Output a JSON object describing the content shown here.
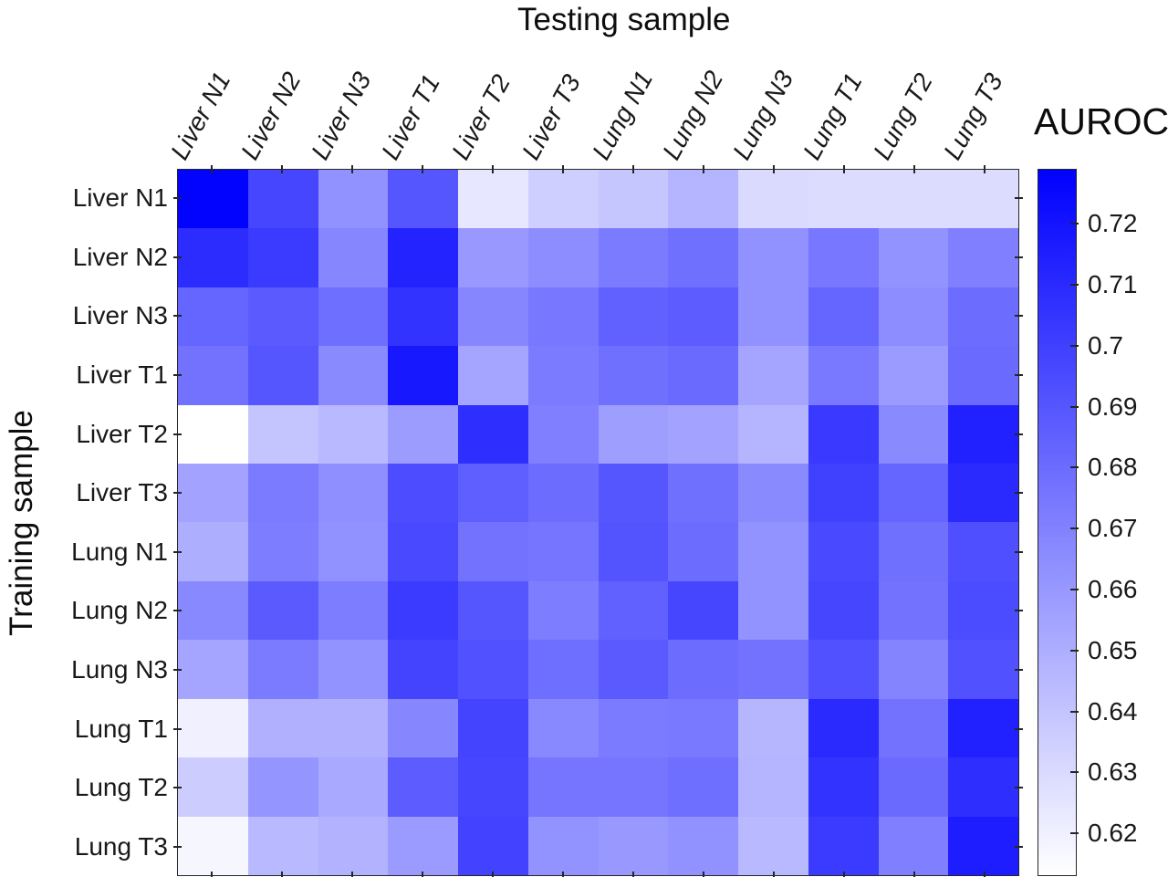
{
  "figure": {
    "x_axis_title": "Testing sample",
    "y_axis_title": "Training sample",
    "colorbar_title": "AUROC"
  },
  "chart_data": {
    "type": "heatmap",
    "title": "",
    "x_axis_title": "Testing sample",
    "y_axis_title": "Training sample",
    "columns": [
      "Liver N1",
      "Liver N2",
      "Liver N3",
      "Liver T1",
      "Liver T2",
      "Liver T3",
      "Lung N1",
      "Lung N2",
      "Lung N3",
      "Lung T1",
      "Lung T2",
      "Lung T3"
    ],
    "rows": [
      "Liver N1",
      "Liver N2",
      "Liver N3",
      "Liver T1",
      "Liver T2",
      "Liver T3",
      "Lung N1",
      "Lung N2",
      "Lung N3",
      "Lung T1",
      "Lung T2",
      "Lung T3"
    ],
    "values": [
      [
        0.728,
        0.697,
        0.663,
        0.69,
        0.624,
        0.635,
        0.639,
        0.647,
        0.63,
        0.629,
        0.629,
        0.629
      ],
      [
        0.709,
        0.702,
        0.668,
        0.713,
        0.66,
        0.665,
        0.673,
        0.678,
        0.663,
        0.675,
        0.662,
        0.671
      ],
      [
        0.683,
        0.688,
        0.679,
        0.706,
        0.668,
        0.675,
        0.685,
        0.687,
        0.663,
        0.683,
        0.665,
        0.68
      ],
      [
        0.677,
        0.69,
        0.666,
        0.718,
        0.654,
        0.673,
        0.678,
        0.681,
        0.654,
        0.674,
        0.659,
        0.681
      ],
      [
        0.613,
        0.64,
        0.645,
        0.658,
        0.708,
        0.671,
        0.657,
        0.655,
        0.647,
        0.703,
        0.666,
        0.714
      ],
      [
        0.655,
        0.673,
        0.664,
        0.694,
        0.686,
        0.68,
        0.69,
        0.678,
        0.666,
        0.7,
        0.683,
        0.71
      ],
      [
        0.65,
        0.672,
        0.663,
        0.696,
        0.677,
        0.676,
        0.691,
        0.68,
        0.662,
        0.696,
        0.678,
        0.693
      ],
      [
        0.667,
        0.688,
        0.672,
        0.702,
        0.69,
        0.672,
        0.685,
        0.697,
        0.662,
        0.697,
        0.677,
        0.695
      ],
      [
        0.654,
        0.673,
        0.662,
        0.698,
        0.692,
        0.679,
        0.688,
        0.68,
        0.677,
        0.692,
        0.669,
        0.692
      ],
      [
        0.62,
        0.649,
        0.649,
        0.668,
        0.698,
        0.667,
        0.673,
        0.674,
        0.646,
        0.71,
        0.677,
        0.714
      ],
      [
        0.636,
        0.661,
        0.652,
        0.687,
        0.697,
        0.676,
        0.676,
        0.679,
        0.647,
        0.706,
        0.681,
        0.708
      ],
      [
        0.617,
        0.645,
        0.648,
        0.659,
        0.699,
        0.662,
        0.66,
        0.663,
        0.645,
        0.702,
        0.671,
        0.716
      ]
    ],
    "colorbar": {
      "label": "AUROC",
      "tick_labels": [
        "0.72",
        "0.71",
        "0.7",
        "0.69",
        "0.68",
        "0.67",
        "0.66",
        "0.65",
        "0.64",
        "0.63",
        "0.62"
      ],
      "tick_values": [
        0.72,
        0.71,
        0.7,
        0.69,
        0.68,
        0.67,
        0.66,
        0.65,
        0.64,
        0.63,
        0.62
      ],
      "vmin": 0.613,
      "vmax": 0.729,
      "colormap": [
        "#ffffff",
        "#0000ff"
      ],
      "position": "right"
    },
    "grid": false,
    "x_tick_rotation_deg": 61,
    "x_axis_position": "top"
  }
}
